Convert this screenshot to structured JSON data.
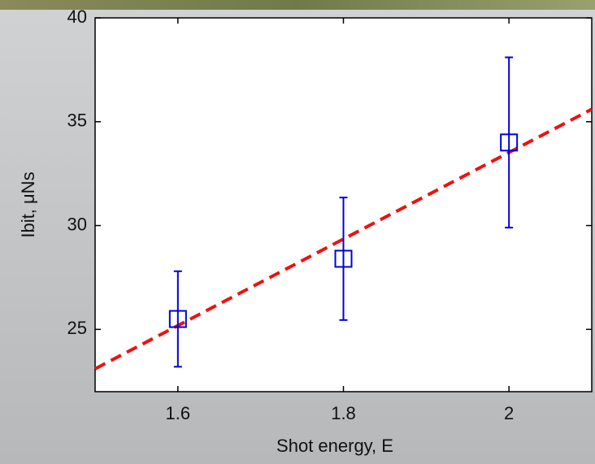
{
  "chart_data": {
    "type": "scatter",
    "x_label": "Shot energy, E",
    "y_label": "Ibit,  μNs",
    "xlim": [
      1.5,
      2.1
    ],
    "xticks": [
      1.6,
      1.8,
      2
    ],
    "ylim": [
      22,
      40
    ],
    "yticks": [
      25,
      30,
      35,
      40
    ],
    "points": {
      "x": [
        1.6,
        1.8,
        2
      ],
      "values": [
        25.5,
        28.4,
        34.0
      ],
      "errors": [
        2.3,
        2.95,
        4.1
      ],
      "color": "#0000dd"
    },
    "fit": {
      "x": [
        1.5,
        2.1
      ],
      "values": [
        23.1,
        35.6
      ],
      "color": "#ee1111"
    }
  }
}
